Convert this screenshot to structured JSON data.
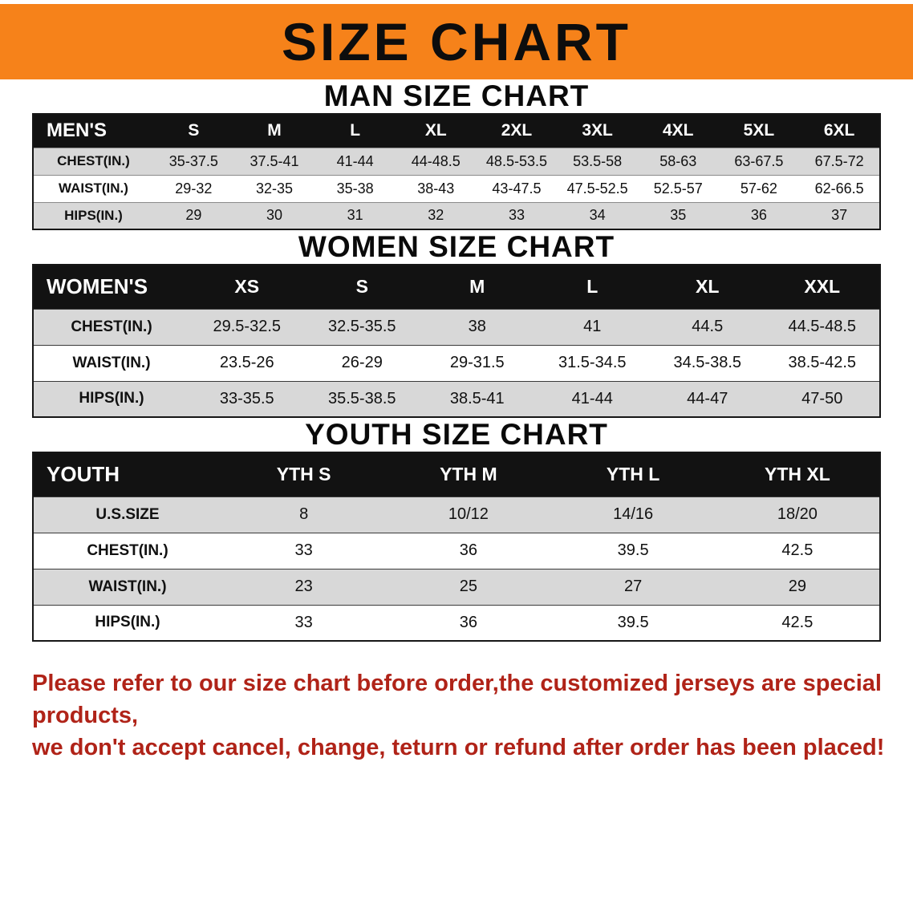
{
  "banner": {
    "title": "SIZE CHART"
  },
  "men": {
    "heading": "MAN SIZE CHART",
    "label": "MEN'S",
    "sizes": [
      "S",
      "M",
      "L",
      "XL",
      "2XL",
      "3XL",
      "4XL",
      "5XL",
      "6XL"
    ],
    "rows": [
      {
        "label": "CHEST(IN.)",
        "values": [
          "35-37.5",
          "37.5-41",
          "41-44",
          "44-48.5",
          "48.5-53.5",
          "53.5-58",
          "58-63",
          "63-67.5",
          "67.5-72"
        ]
      },
      {
        "label": "WAIST(IN.)",
        "values": [
          "29-32",
          "32-35",
          "35-38",
          "38-43",
          "43-47.5",
          "47.5-52.5",
          "52.5-57",
          "57-62",
          "62-66.5"
        ]
      },
      {
        "label": "HIPS(IN.)",
        "values": [
          "29",
          "30",
          "31",
          "32",
          "33",
          "34",
          "35",
          "36",
          "37"
        ]
      }
    ]
  },
  "women": {
    "heading": "WOMEN SIZE CHART",
    "label": "WOMEN'S",
    "sizes": [
      "XS",
      "S",
      "M",
      "L",
      "XL",
      "XXL"
    ],
    "rows": [
      {
        "label": "CHEST(IN.)",
        "values": [
          "29.5-32.5",
          "32.5-35.5",
          "38",
          "41",
          "44.5",
          "44.5-48.5"
        ]
      },
      {
        "label": "WAIST(IN.)",
        "values": [
          "23.5-26",
          "26-29",
          "29-31.5",
          "31.5-34.5",
          "34.5-38.5",
          "38.5-42.5"
        ]
      },
      {
        "label": "HIPS(IN.)",
        "values": [
          "33-35.5",
          "35.5-38.5",
          "38.5-41",
          "41-44",
          "44-47",
          "47-50"
        ]
      }
    ]
  },
  "youth": {
    "heading": "YOUTH SIZE CHART",
    "label": "YOUTH",
    "sizes": [
      "YTH S",
      "YTH M",
      "YTH L",
      "YTH XL"
    ],
    "rows": [
      {
        "label": "U.S.SIZE",
        "values": [
          "8",
          "10/12",
          "14/16",
          "18/20"
        ]
      },
      {
        "label": "CHEST(IN.)",
        "values": [
          "33",
          "36",
          "39.5",
          "42.5"
        ]
      },
      {
        "label": "WAIST(IN.)",
        "values": [
          "23",
          "25",
          "27",
          "29"
        ]
      },
      {
        "label": "HIPS(IN.)",
        "values": [
          "33",
          "36",
          "39.5",
          "42.5"
        ]
      }
    ]
  },
  "footer": {
    "line1": "Please refer to our size chart before order,the customized jerseys are special products,",
    "line2": "we don't accept cancel, change, teturn or refund after order has been placed!"
  },
  "colors": {
    "banner_bg": "#f6821a",
    "table_header_bg": "#121212",
    "row_alt_bg": "#d8d8d8",
    "footer_text": "#b02318"
  }
}
